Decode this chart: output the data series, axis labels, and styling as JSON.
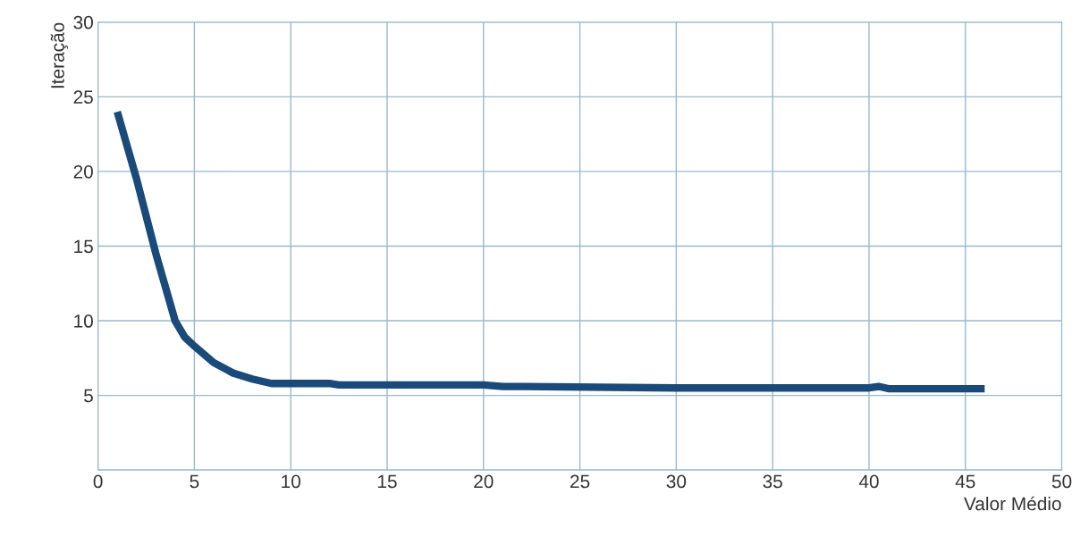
{
  "chart_data": {
    "type": "line",
    "xlabel": "Valor Médio",
    "ylabel": "Iteração",
    "x": [
      1,
      2,
      3,
      4,
      4.5,
      5,
      6,
      7,
      8,
      9,
      10,
      12,
      12.5,
      20,
      21,
      22,
      30,
      40,
      40.5,
      41,
      46
    ],
    "series": [
      {
        "color": "#1a4a7a",
        "values": [
          24,
          19.5,
          14.5,
          10,
          8.9,
          8.3,
          7.2,
          6.5,
          6.1,
          5.8,
          5.8,
          5.8,
          5.7,
          5.7,
          5.6,
          5.6,
          5.5,
          5.5,
          5.6,
          5.45,
          5.45
        ]
      }
    ],
    "xlim": [
      0,
      50
    ],
    "xticks": [
      0,
      5,
      10,
      15,
      20,
      25,
      30,
      35,
      40,
      45,
      50
    ],
    "ylim": [
      0,
      30
    ],
    "yticks": [
      {
        "value": 0,
        "label": null
      },
      5,
      10,
      15,
      20,
      25,
      30
    ],
    "grid": true,
    "legend": false,
    "marker": "none",
    "line_style": "solid"
  }
}
